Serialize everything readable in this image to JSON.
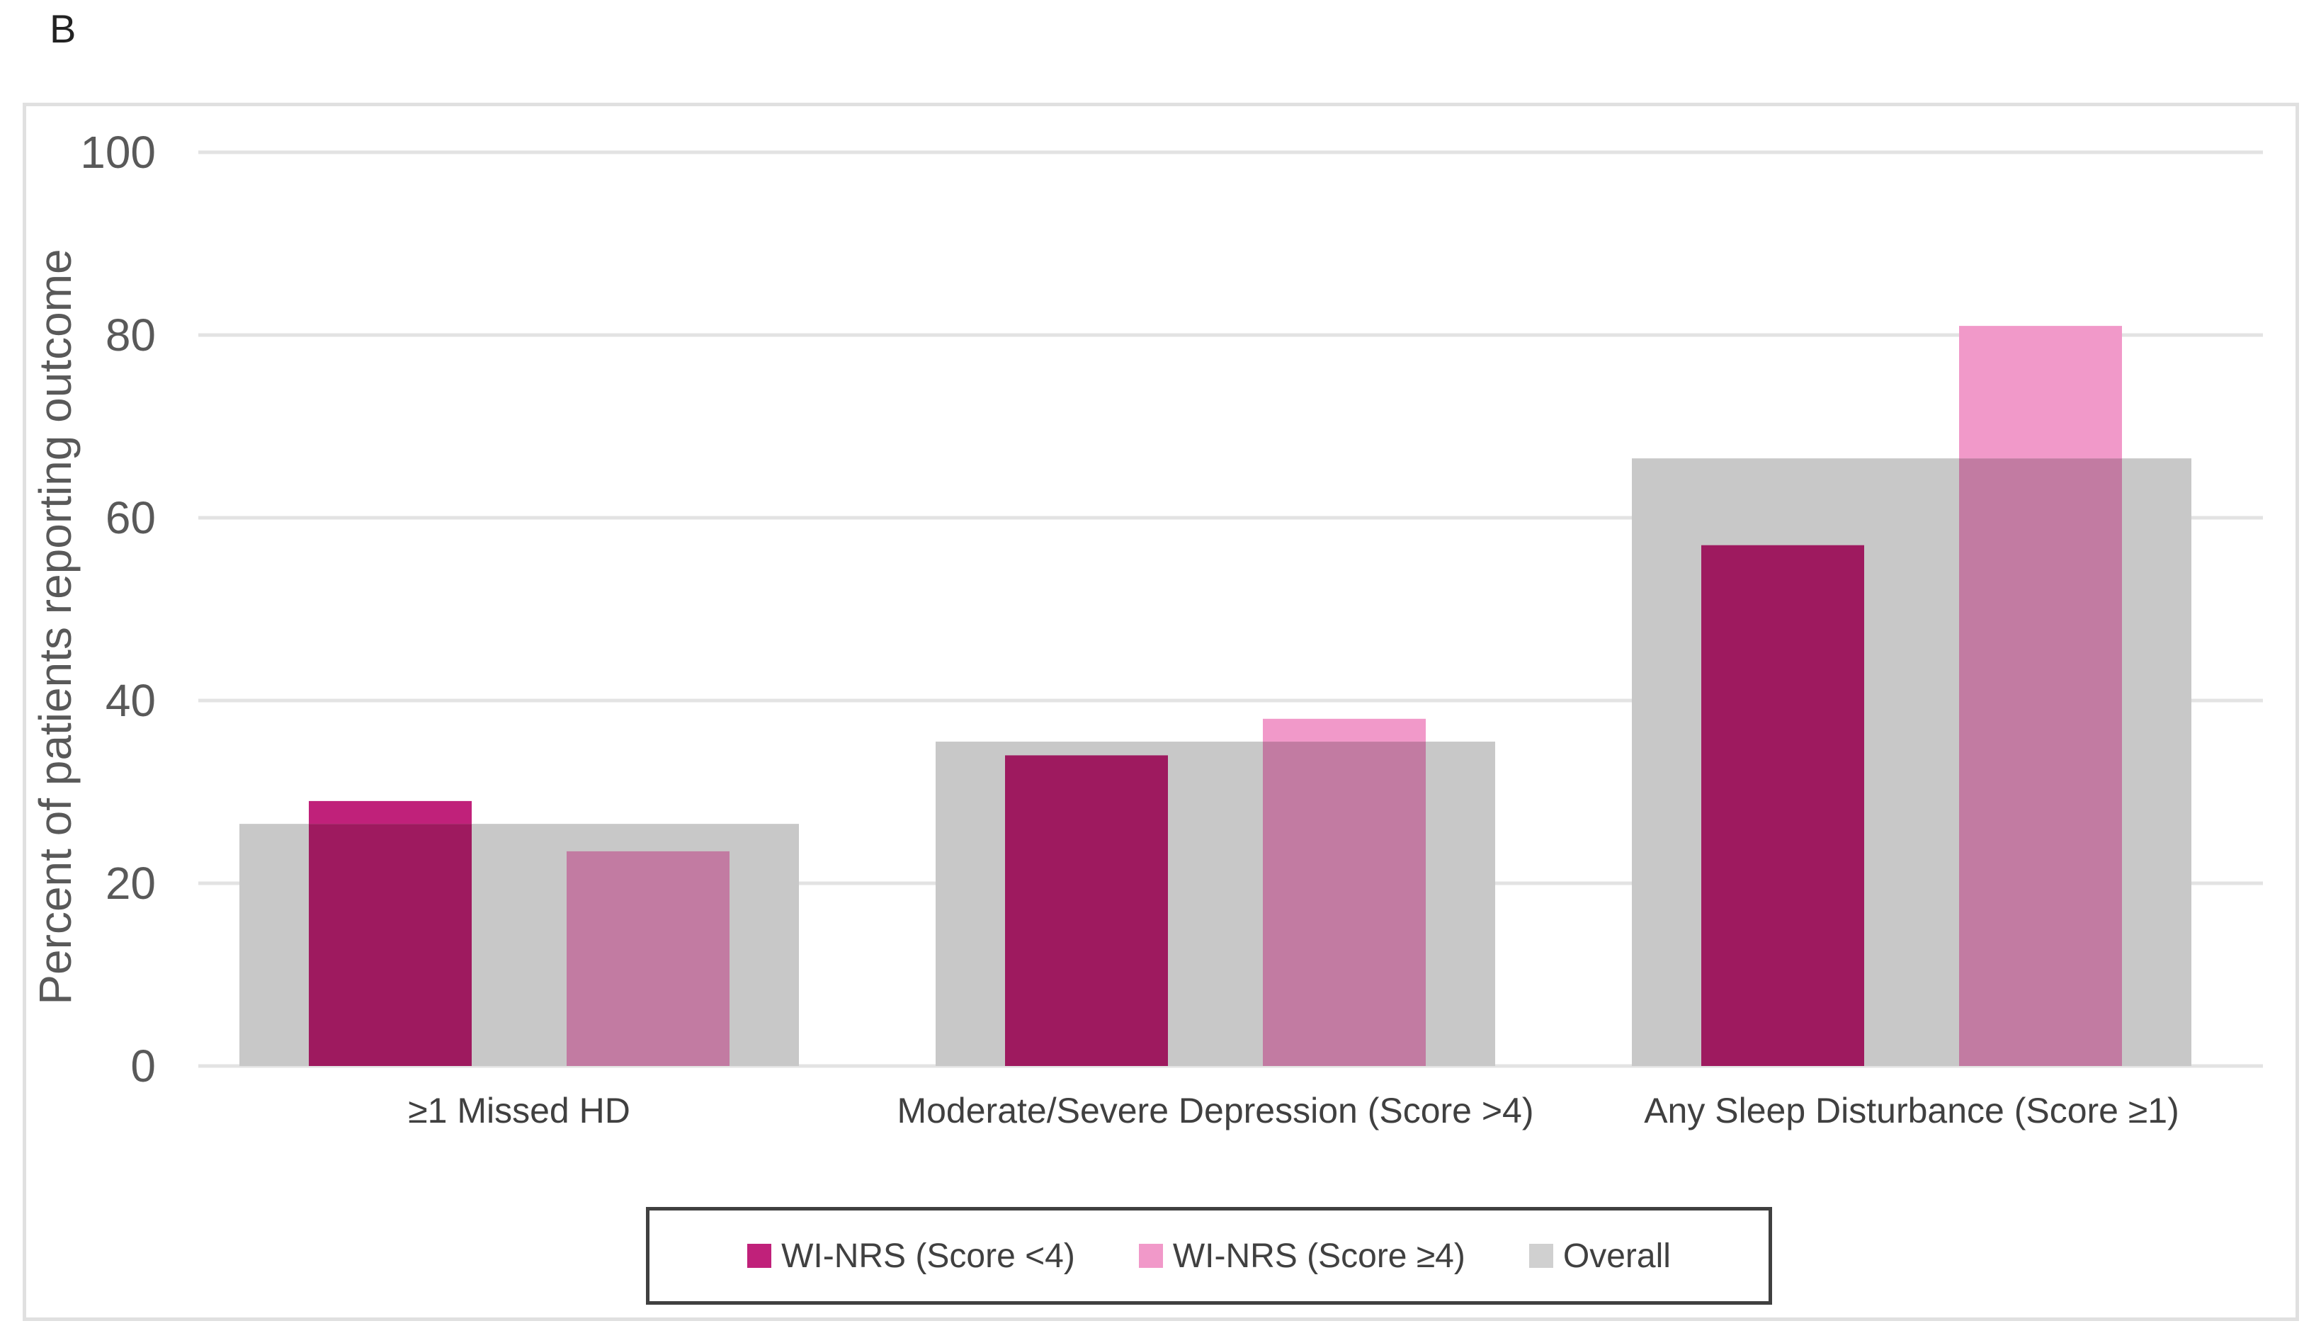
{
  "panel_label": "B",
  "chart_data": {
    "type": "bar",
    "title": "",
    "ylabel": "Percent of patients reporting outcome",
    "xlabel": "",
    "ylim": [
      0,
      100
    ],
    "yticks": [
      0,
      20,
      40,
      60,
      80,
      100
    ],
    "categories": [
      "≥1 Missed HD",
      "Moderate/Severe Depression (Score >4)",
      "Any Sleep Disturbance (Score ≥1)"
    ],
    "series": [
      {
        "name": "WI-NRS (Score <4)",
        "values": [
          29,
          34,
          57
        ],
        "color": "#9e1a5f"
      },
      {
        "name": "WI-NRS (Score ≥4)",
        "values": [
          23.5,
          38,
          81
        ],
        "color": "#f199c9"
      },
      {
        "name": "Overall",
        "values": [
          26.5,
          35.5,
          66.5
        ],
        "color": "#bfbfbf"
      }
    ],
    "grid": true,
    "legend_position": "bottom"
  }
}
